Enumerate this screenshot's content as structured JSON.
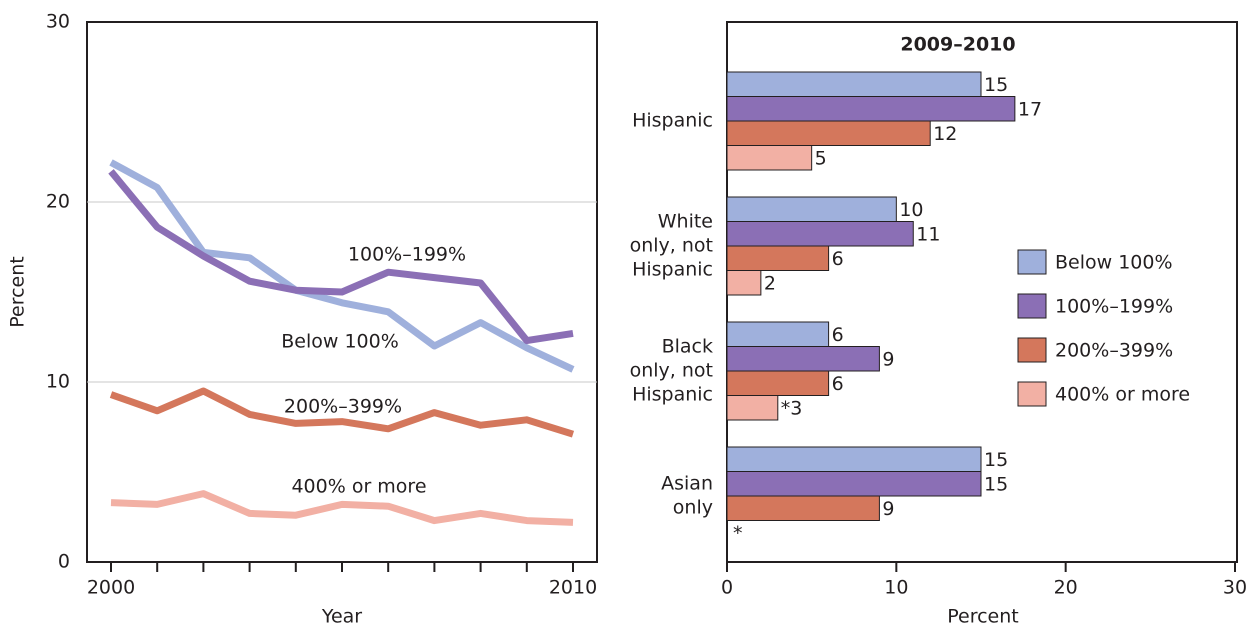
{
  "chart_data": [
    {
      "type": "line",
      "x_label": "Year",
      "y_label": "Percent",
      "x": [
        2000,
        2001,
        2002,
        2003,
        2004,
        2005,
        2006,
        2007,
        2008,
        2009,
        2010
      ],
      "xlim": [
        2000,
        2010
      ],
      "xticks": [
        2000,
        2010
      ],
      "ylim": [
        0,
        30
      ],
      "yticks": [
        0,
        10,
        20,
        30
      ],
      "grid": true,
      "series": [
        {
          "name": "Below 100%",
          "color": "#9fb0dc",
          "values": [
            22.2,
            20.8,
            17.2,
            16.9,
            15.1,
            14.4,
            13.9,
            12.0,
            13.3,
            11.9,
            10.7
          ]
        },
        {
          "name": "100%–199%",
          "color": "#8b6fb5",
          "values": [
            21.7,
            18.6,
            17.0,
            15.6,
            15.1,
            15.0,
            16.1,
            15.8,
            15.5,
            12.3,
            12.7
          ]
        },
        {
          "name": "200%–399%",
          "color": "#d4775c",
          "values": [
            9.3,
            8.4,
            9.5,
            8.2,
            7.7,
            7.8,
            7.4,
            8.3,
            7.6,
            7.9,
            7.1
          ]
        },
        {
          "name": "400% or more",
          "color": "#f2b0a4",
          "values": [
            3.3,
            3.2,
            3.8,
            2.7,
            2.6,
            3.2,
            3.1,
            2.3,
            2.7,
            2.3,
            2.2
          ]
        }
      ]
    },
    {
      "type": "hbar",
      "title": "2009–2010",
      "x_label": "Percent",
      "categories": [
        [
          "Hispanic"
        ],
        [
          "White",
          "only, not",
          "Hispanic"
        ],
        [
          "Black",
          "only, not",
          "Hispanic"
        ],
        [
          "Asian",
          "only"
        ]
      ],
      "xlim": [
        0,
        30
      ],
      "xticks": [
        0,
        10,
        20,
        30
      ],
      "legend": "right",
      "series": [
        {
          "name": "Below 100%",
          "color": "#9fb0dc",
          "values": [
            15,
            10,
            6,
            15
          ]
        },
        {
          "name": "100%–199%",
          "color": "#8b6fb5",
          "values": [
            17,
            11,
            9,
            15
          ]
        },
        {
          "name": "200%–399%",
          "color": "#d4775c",
          "values": [
            12,
            6,
            6,
            9
          ]
        },
        {
          "name": "400% or more",
          "color": "#f2b0a4",
          "values": [
            5,
            2,
            3,
            null
          ],
          "value_labels": [
            "5",
            "2",
            "*3",
            "*"
          ]
        }
      ]
    }
  ]
}
